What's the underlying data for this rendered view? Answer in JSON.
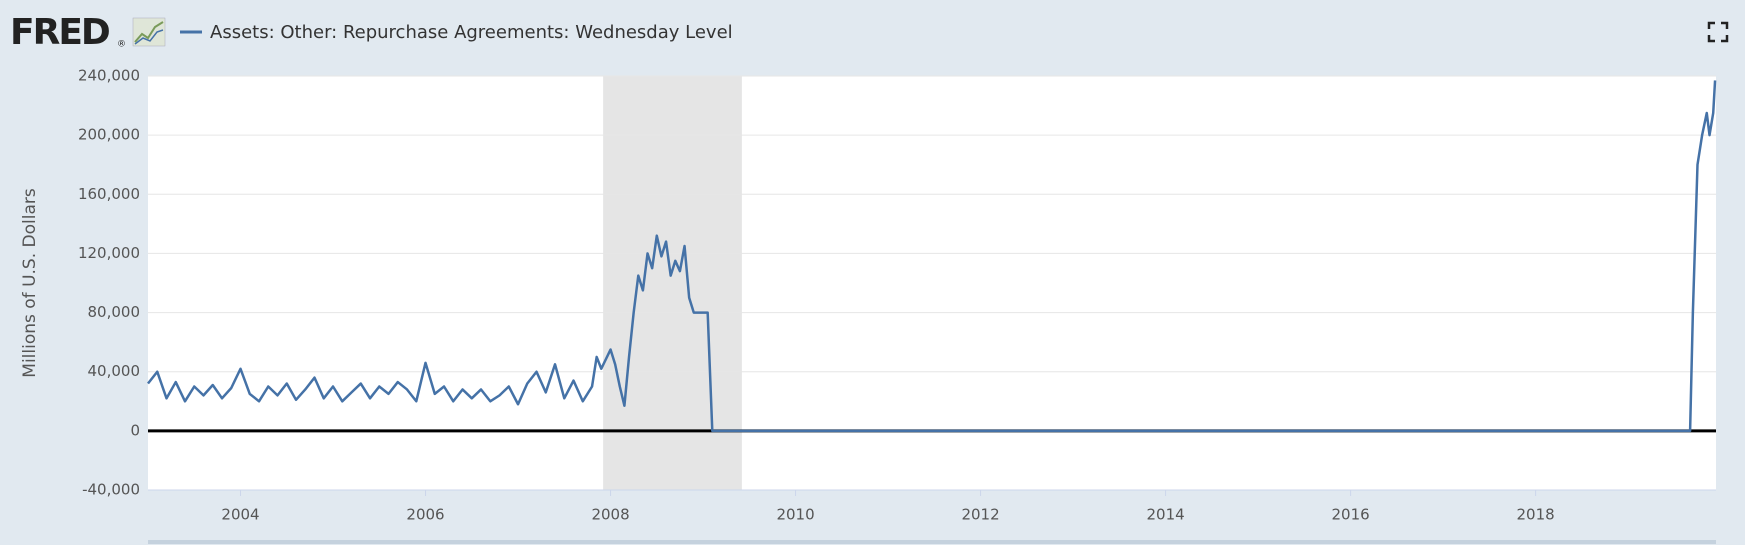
{
  "header": {
    "logo": "FRED",
    "logo_mark": "®"
  },
  "chart_data": {
    "type": "line",
    "y_axis_label": "Millions of U.S. Dollars",
    "x": [
      2003.0,
      2003.1,
      2003.2,
      2003.3,
      2003.4,
      2003.5,
      2003.6,
      2003.7,
      2003.8,
      2003.9,
      2004.0,
      2004.1,
      2004.2,
      2004.3,
      2004.4,
      2004.5,
      2004.6,
      2004.7,
      2004.8,
      2004.9,
      2005.0,
      2005.1,
      2005.2,
      2005.3,
      2005.4,
      2005.5,
      2005.6,
      2005.7,
      2005.8,
      2005.9,
      2006.0,
      2006.1,
      2006.2,
      2006.3,
      2006.4,
      2006.5,
      2006.6,
      2006.7,
      2006.8,
      2006.9,
      2007.0,
      2007.1,
      2007.2,
      2007.3,
      2007.4,
      2007.5,
      2007.6,
      2007.7,
      2007.8,
      2007.85,
      2007.9,
      2008.0,
      2008.05,
      2008.1,
      2008.15,
      2008.2,
      2008.25,
      2008.3,
      2008.35,
      2008.4,
      2008.45,
      2008.5,
      2008.55,
      2008.6,
      2008.65,
      2008.7,
      2008.75,
      2008.8,
      2008.85,
      2008.9,
      2009.0,
      2009.05,
      2009.1,
      2012.6,
      2019.67,
      2019.7,
      2019.75,
      2019.8,
      2019.85,
      2019.88,
      2019.92,
      2019.94
    ],
    "series": [
      {
        "name": "Assets: Other: Repurchase Agreements: Wednesday Level",
        "color": "#4572a7",
        "values": [
          32000,
          40000,
          22000,
          33000,
          20000,
          30000,
          24000,
          31000,
          22000,
          29000,
          42000,
          25000,
          20000,
          30000,
          24000,
          32000,
          21000,
          28000,
          36000,
          22000,
          30000,
          20000,
          26000,
          32000,
          22000,
          30000,
          25000,
          33000,
          28000,
          20000,
          46000,
          25000,
          30000,
          20000,
          28000,
          22000,
          28000,
          20000,
          24000,
          30000,
          18000,
          32000,
          40000,
          26000,
          45000,
          22000,
          34000,
          20000,
          30000,
          50000,
          42000,
          55000,
          45000,
          30000,
          17000,
          50000,
          80000,
          105000,
          95000,
          120000,
          110000,
          132000,
          118000,
          128000,
          105000,
          115000,
          108000,
          125000,
          90000,
          80000,
          80000,
          80000,
          0,
          0,
          0,
          80000,
          180000,
          200000,
          215000,
          200000,
          215000,
          237000
        ]
      }
    ],
    "shaded_periods": [
      [
        2007.92,
        2009.42
      ]
    ],
    "xlim": [
      2003.0,
      2019.95
    ],
    "xticks": [
      2004,
      2006,
      2008,
      2010,
      2012,
      2014,
      2016,
      2018
    ],
    "ylim": [
      -40000,
      240000
    ],
    "yticks": [
      {
        "value": -40000,
        "label": "-40,000"
      },
      0,
      {
        "value": 40000,
        "label": "40,000"
      },
      {
        "value": 80000,
        "label": "80,000"
      },
      {
        "value": 120000,
        "label": "120,000"
      },
      {
        "value": 160000,
        "label": "160,000"
      },
      {
        "value": 200000,
        "label": "200,000"
      },
      {
        "value": 240000,
        "label": "240,000"
      }
    ],
    "grid": true
  }
}
